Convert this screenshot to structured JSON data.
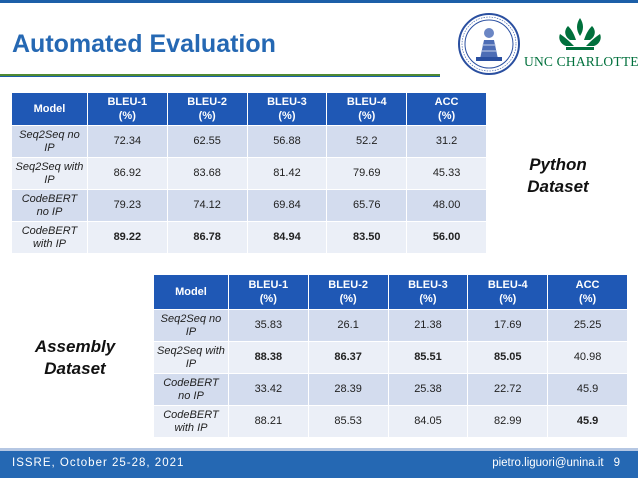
{
  "slide": {
    "title": "Automated Evaluation",
    "unc_logo_text": "UNC CHARLOTTE",
    "accent_color": "#2568b3",
    "green_color": "#00703c"
  },
  "python": {
    "label_line1": "Python",
    "label_line2": "Dataset",
    "headers": {
      "model": "Model",
      "bleu1_a": "BLEU-1",
      "bleu1_b": "(%)",
      "bleu2_a": "BLEU-2",
      "bleu2_b": "(%)",
      "bleu3_a": "BLEU-3",
      "bleu3_b": "(%)",
      "bleu4_a": "BLEU-4",
      "bleu4_b": "(%)",
      "acc_a": "ACC",
      "acc_b": "(%)"
    },
    "rows": [
      {
        "model_a": "Seq2Seq no",
        "model_b": "IP",
        "bleu1": "72.34",
        "bleu2": "62.55",
        "bleu3": "56.88",
        "bleu4": "52.2",
        "acc": "31.2"
      },
      {
        "model_a": "Seq2Seq with",
        "model_b": "IP",
        "bleu1": "86.92",
        "bleu2": "83.68",
        "bleu3": "81.42",
        "bleu4": "79.69",
        "acc": "45.33"
      },
      {
        "model_a": "CodeBERT",
        "model_b": "no IP",
        "bleu1": "79.23",
        "bleu2": "74.12",
        "bleu3": "69.84",
        "bleu4": "65.76",
        "acc": "48.00"
      },
      {
        "model_a": "CodeBERT",
        "model_b": "with IP",
        "bleu1": "89.22",
        "bleu2": "86.78",
        "bleu3": "84.94",
        "bleu4": "83.50",
        "acc": "56.00"
      }
    ]
  },
  "assembly": {
    "label_line1": "Assembly",
    "label_line2": "Dataset",
    "headers": {
      "model": "Model",
      "bleu1_a": "BLEU-1",
      "bleu1_b": "(%)",
      "bleu2_a": "BLEU-2",
      "bleu2_b": "(%)",
      "bleu3_a": "BLEU-3",
      "bleu3_b": "(%)",
      "bleu4_a": "BLEU-4",
      "bleu4_b": "(%)",
      "acc_a": "ACC",
      "acc_b": "(%)"
    },
    "rows": [
      {
        "model_a": "Seq2Seq no",
        "model_b": "IP",
        "bleu1": "35.83",
        "bleu2": "26.1",
        "bleu3": "21.38",
        "bleu4": "17.69",
        "acc": "25.25"
      },
      {
        "model_a": "Seq2Seq with",
        "model_b": "IP",
        "bleu1": "88.38",
        "bleu2": "86.37",
        "bleu3": "85.51",
        "bleu4": "85.05",
        "acc": "40.98"
      },
      {
        "model_a": "CodeBERT",
        "model_b": "no IP",
        "bleu1": "33.42",
        "bleu2": "28.39",
        "bleu3": "25.38",
        "bleu4": "22.72",
        "acc": "45.9"
      },
      {
        "model_a": "CodeBERT",
        "model_b": "with IP",
        "bleu1": "88.21",
        "bleu2": "85.53",
        "bleu3": "84.05",
        "bleu4": "82.99",
        "acc": "45.9"
      }
    ]
  },
  "footer": {
    "conference": "ISSRE, October 25-28, 2021",
    "email": "pietro.liguori@unina.it",
    "page": "9"
  }
}
